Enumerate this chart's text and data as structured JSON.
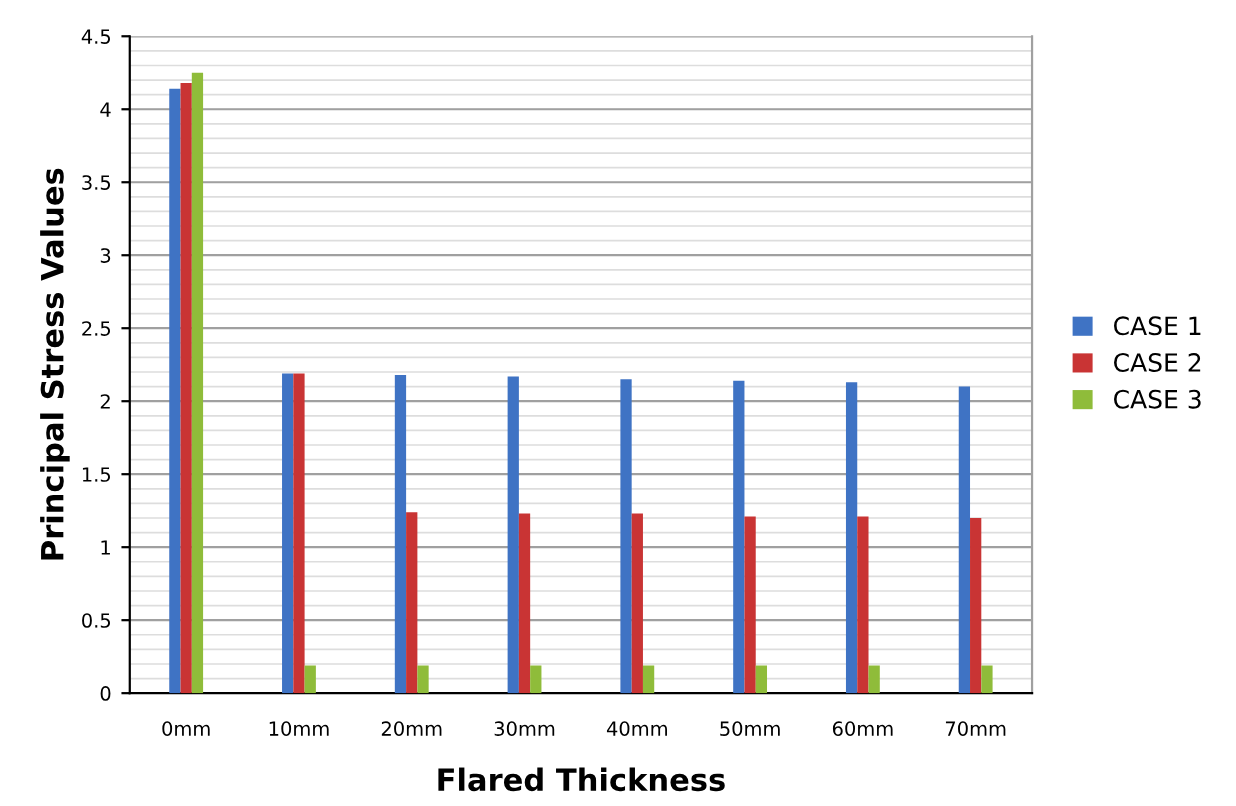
{
  "chart_data": {
    "type": "bar",
    "xlabel": "Flared Thickness",
    "ylabel": "Principal Stress Values",
    "categories": [
      "0mm",
      "10mm",
      "20mm",
      "30mm",
      "40mm",
      "50mm",
      "60mm",
      "70mm"
    ],
    "series": [
      {
        "name": "CASE 1",
        "color": "#3f73c4",
        "values": [
          4.14,
          2.19,
          2.18,
          2.17,
          2.15,
          2.14,
          2.13,
          2.1
        ]
      },
      {
        "name": "CASE 2",
        "color": "#c93434",
        "values": [
          4.18,
          2.19,
          1.24,
          1.23,
          1.23,
          1.21,
          1.21,
          1.2
        ]
      },
      {
        "name": "CASE 3",
        "color": "#8fbc3a",
        "values": [
          4.25,
          0.19,
          0.19,
          0.19,
          0.19,
          0.19,
          0.19,
          0.19
        ]
      }
    ],
    "ylim": [
      0,
      4.5
    ],
    "yticks": [
      0,
      0.5,
      1,
      1.5,
      2,
      2.5,
      3,
      3.5,
      4,
      4.5
    ],
    "grid": "y",
    "legend": "right"
  }
}
